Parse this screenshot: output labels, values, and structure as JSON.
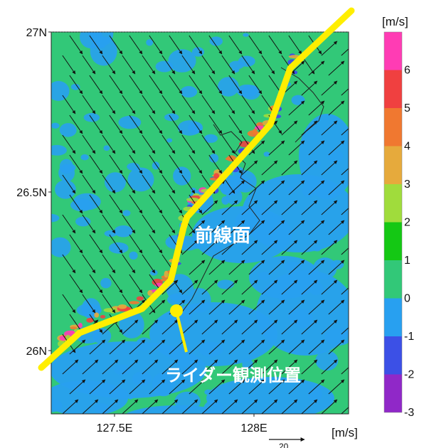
{
  "colorbar": {
    "unit": "[m/s]",
    "ticks": [
      "6",
      "5",
      "4",
      "3",
      "2",
      "1",
      "0",
      "-1",
      "-2",
      "-3"
    ],
    "colors": [
      "#ff3cb4",
      "#f04040",
      "#f07830",
      "#e6aa3c",
      "#a0dc3c",
      "#14c814",
      "#32c878",
      "#28a0f0",
      "#3c50e6",
      "#9028c8"
    ]
  },
  "axes": {
    "lat_labels": [
      "27N",
      "26.5N",
      "26N"
    ],
    "lon_labels": [
      "127.5E",
      "128E"
    ]
  },
  "vector_legend": {
    "value": "20",
    "unit": "[m/s]"
  },
  "annotations": {
    "front": "前線面",
    "lidar": "ライダー観測位置"
  },
  "colors": {
    "front_line": "#ffee00",
    "background_field": "#32c878",
    "negative_field": "#28a0f0"
  }
}
